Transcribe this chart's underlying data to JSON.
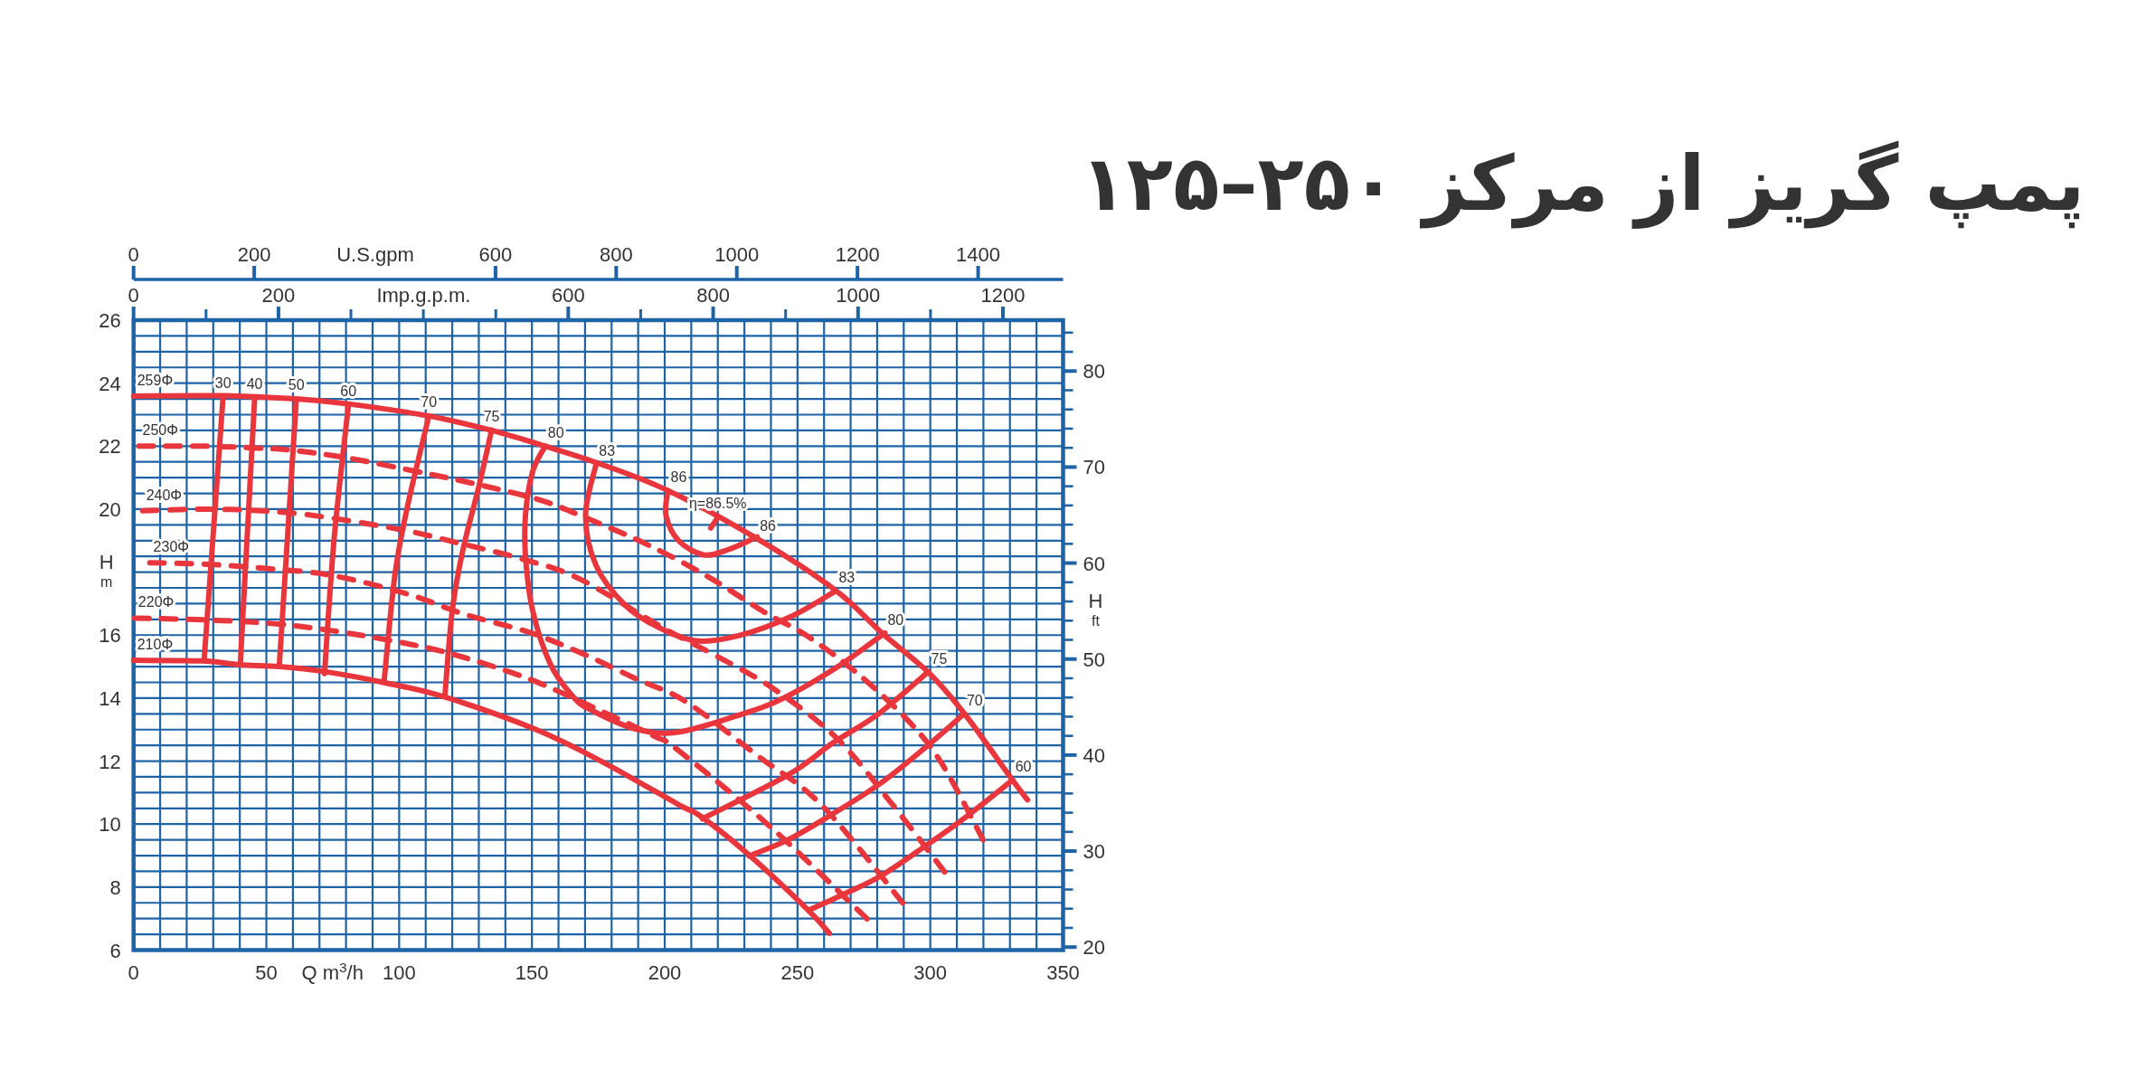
{
  "chart_data": [
    {
      "type": "line",
      "title": "پمپ گریز از مرکز ۲۵۰–۱۲۵",
      "xlabel": "Q m$^{3}$/h",
      "ylabel": "H$_{m}$",
      "y2label": "H$_{ft}$",
      "x2label": "Imp.g.p.m.",
      "xlim": [
        0,
        350
      ],
      "ylim": [
        6,
        26
      ],
      "y2lim": [
        19.69,
        85.3
      ],
      "x2lim": [
        0,
        1283
      ],
      "xticks": [
        0,
        {
          "value": 10,
          "label": null
        },
        {
          "value": 20,
          "label": null
        },
        {
          "value": 30,
          "label": null
        },
        {
          "value": 40,
          "label": null
        },
        50,
        {
          "value": 60,
          "label": null
        },
        {
          "value": 70,
          "label": null
        },
        {
          "value": 80,
          "label": null
        },
        {
          "value": 90,
          "label": null
        },
        100,
        {
          "value": 110,
          "label": null
        },
        {
          "value": 120,
          "label": null
        },
        {
          "value": 130,
          "label": null
        },
        {
          "value": 140,
          "label": null
        },
        150,
        {
          "value": 160,
          "label": null
        },
        {
          "value": 170,
          "label": null
        },
        {
          "value": 180,
          "label": null
        },
        {
          "value": 190,
          "label": null
        },
        200,
        {
          "value": 210,
          "label": null
        },
        {
          "value": 220,
          "label": null
        },
        {
          "value": 230,
          "label": null
        },
        {
          "value": 240,
          "label": null
        },
        250,
        {
          "value": 260,
          "label": null
        },
        {
          "value": 270,
          "label": null
        },
        {
          "value": 280,
          "label": null
        },
        {
          "value": 290,
          "label": null
        },
        300,
        {
          "value": 310,
          "label": null
        },
        {
          "value": 320,
          "label": null
        },
        {
          "value": 330,
          "label": null
        },
        {
          "value": 340,
          "label": null
        },
        350
      ],
      "yticks": [
        6,
        {
          "value": 6.5,
          "label": null
        },
        {
          "value": 7,
          "label": null
        },
        {
          "value": 7.5,
          "label": null
        },
        8,
        {
          "value": 8.5,
          "label": null
        },
        {
          "value": 9,
          "label": null
        },
        {
          "value": 9.5,
          "label": null
        },
        10,
        {
          "value": 10.5,
          "label": null
        },
        {
          "value": 11,
          "label": null
        },
        {
          "value": 11.5,
          "label": null
        },
        12,
        {
          "value": 12.5,
          "label": null
        },
        {
          "value": 13,
          "label": null
        },
        {
          "value": 13.5,
          "label": null
        },
        14,
        {
          "value": 14.5,
          "label": null
        },
        {
          "value": 15,
          "label": null
        },
        {
          "value": 15.5,
          "label": null
        },
        16,
        {
          "value": 16.5,
          "label": null
        },
        {
          "value": 17,
          "label": null
        },
        {
          "value": 17.5,
          "label": null
        },
        {
          "value": 18,
          "label": null
        },
        {
          "value": 18.5,
          "label": null
        },
        {
          "value": 19,
          "label": null
        },
        {
          "value": 19.5,
          "label": null
        },
        20,
        {
          "value": 20.5,
          "label": null
        },
        {
          "value": 21,
          "label": null
        },
        {
          "value": 21.5,
          "label": null
        },
        22,
        {
          "value": 22.5,
          "label": null
        },
        {
          "value": 23,
          "label": null
        },
        {
          "value": 23.5,
          "label": null
        },
        24,
        {
          "value": 24.5,
          "label": null
        },
        {
          "value": 25,
          "label": null
        },
        {
          "value": 25.5,
          "label": null
        },
        26
      ],
      "y2ticks": [
        20,
        {
          "value": 22,
          "label": null
        },
        {
          "value": 24,
          "label": null
        },
        {
          "value": 26,
          "label": null
        },
        {
          "value": 28,
          "label": null
        },
        30,
        {
          "value": 32,
          "label": null
        },
        {
          "value": 34,
          "label": null
        },
        {
          "value": 36,
          "label": null
        },
        {
          "value": 38,
          "label": null
        },
        40,
        {
          "value": 42,
          "label": null
        },
        {
          "value": 44,
          "label": null
        },
        {
          "value": 46,
          "label": null
        },
        {
          "value": 48,
          "label": null
        },
        50,
        {
          "value": 52,
          "label": null
        },
        {
          "value": 54,
          "label": null
        },
        {
          "value": 56,
          "label": null
        },
        {
          "value": 58,
          "label": null
        },
        60,
        {
          "value": 62,
          "label": null
        },
        {
          "value": 64,
          "label": null
        },
        {
          "value": 66,
          "label": null
        },
        {
          "value": 68,
          "label": null
        },
        70,
        {
          "value": 72,
          "label": null
        },
        {
          "value": 74,
          "label": null
        },
        {
          "value": 76,
          "label": null
        },
        {
          "value": 78,
          "label": null
        },
        80,
        {
          "value": 82,
          "label": null
        },
        {
          "value": 84,
          "label": null
        }
      ],
      "x2ticks": [
        0,
        {
          "value": 100,
          "label": null
        },
        200,
        {
          "value": 300,
          "label": null
        },
        {
          "value": 400,
          "label": null
        },
        {
          "value": 500,
          "label": null
        },
        600,
        {
          "value": 700,
          "label": null
        },
        800,
        {
          "value": 900,
          "label": null
        },
        1000,
        {
          "value": 1100,
          "label": null
        },
        1200
      ],
      "grid": true,
      "annotations": [
        {
          "text": "80",
          "x": 155,
          "y": 22.0
        },
        {
          "text": "83",
          "x": 174.2,
          "y": 21.44
        },
        {
          "text": "86",
          "x": 201.2,
          "y": 20.59
        },
        {
          "text": "86",
          "x": 234.8,
          "y": 19.06
        },
        {
          "text": "83",
          "x": 264.5,
          "y": 17.41
        },
        {
          "text": "80",
          "x": 282.9,
          "y": 16.07
        },
        {
          "text": "75",
          "x": 299.3,
          "y": 14.84
        },
        {
          "text": "70",
          "x": 312.7,
          "y": 13.5
        },
        {
          "text": "60",
          "x": 331,
          "y": 11.4
        }
      ],
      "series": [
        {
          "name": "259Φ",
          "color": "#e8363c",
          "line_style": "solid",
          "x": [
            0,
            34.4,
            61.3,
            80.9,
            111,
            134.8,
            155,
            175.2,
            201.2,
            234.8,
            264.5,
            282,
            299.5,
            313,
            330.5,
            336.6
          ],
          "values": [
            23.59,
            23.6,
            23.5,
            23.34,
            22.96,
            22.5,
            22.0,
            21.45,
            20.59,
            19.06,
            17.41,
            16.05,
            14.8,
            13.49,
            11.45,
            10.77
          ]
        },
        {
          "name": "250Φ",
          "color": "#e8363c",
          "line_style": "dashed",
          "x": [
            2,
            27,
            46.5,
            58.6,
            80.2,
            109.8,
            128.7,
            153,
            171.5,
            193.1,
            216,
            237.5,
            253.7,
            273.2,
            292.6,
            304.8,
            319.9
          ],
          "values": [
            22.0,
            22.0,
            21.94,
            21.88,
            21.63,
            21.14,
            20.8,
            20.29,
            19.68,
            18.89,
            17.87,
            16.73,
            15.97,
            14.74,
            13.2,
            11.86,
            9.5
          ]
        },
        {
          "name": "240Φ",
          "color": "#e8363c",
          "line_style": "dashed",
          "x": [
            3.4,
            27,
            47.9,
            69.4,
            101.8,
            122,
            146.2,
            167.8,
            198.5,
            218.7,
            240.2,
            264.5,
            285,
            305.4
          ],
          "values": [
            19.95,
            20.0,
            19.95,
            19.78,
            19.33,
            18.93,
            18.42,
            17.79,
            16.27,
            15.37,
            14.34,
            12.75,
            10.7,
            8.48
          ]
        },
        {
          "name": "230Φ",
          "color": "#e8363c",
          "line_style": "dashed",
          "x": [
            6.1,
            27.7,
            47.9,
            73.5,
            101.8,
            124.7,
            148.9,
            169.1,
            189.3,
            207.9,
            234.8,
            259.1,
            289.6
          ],
          "values": [
            18.3,
            18.25,
            18.13,
            17.91,
            17.34,
            16.66,
            16.09,
            15.41,
            14.61,
            13.89,
            12.18,
            10.6,
            7.5
          ]
        },
        {
          "name": "220Φ",
          "color": "#e8363c",
          "line_style": "dashed",
          "x": [
            0.4,
            27.7,
            51.9,
            74.8,
            101.8,
            122,
            148.9,
            173.2,
            196.1,
            205.1,
            240,
            276.2
          ],
          "values": [
            16.54,
            16.48,
            16.37,
            16.14,
            15.75,
            15.35,
            14.61,
            13.7,
            12.79,
            12.34,
            9.9,
            6.99
          ]
        },
        {
          "name": "210Φ",
          "color": "#e8363c",
          "line_style": "solid",
          "x": [
            0,
            26,
            40,
            55,
            72,
            94,
            117,
            151,
            176,
            205,
            214,
            232,
            254,
            262
          ],
          "values": [
            15.2,
            15.18,
            15.06,
            15.0,
            14.84,
            14.5,
            14.04,
            13.02,
            12.0,
            10.63,
            10.22,
            9.0,
            7.27,
            6.53
          ]
        },
        {
          "name": "30",
          "color": "#e8363c",
          "line_style": "solid",
          "x": [
            33.7,
            26.6
          ],
          "values": [
            23.56,
            15.24
          ]
        },
        {
          "name": "40",
          "color": "#e8363c",
          "line_style": "solid",
          "x": [
            45.6,
            40.2
          ],
          "values": [
            23.53,
            15.12
          ]
        },
        {
          "name": "50",
          "color": "#e8363c",
          "line_style": "solid",
          "x": [
            61.3,
            54.9
          ],
          "values": [
            23.5,
            15.07
          ]
        },
        {
          "name": "60",
          "color": "#e8363c",
          "line_style": "solid",
          "x": [
            80.9,
            75.5,
            71.9
          ],
          "values": [
            23.3,
            19.04,
            14.78
          ]
        },
        {
          "name": "70",
          "color": "#e8363c",
          "line_style": "solid",
          "x": [
            111.2,
            103.1,
            98.4,
            94.3
          ],
          "values": [
            22.96,
            20.07,
            17.91,
            14.5
          ]
        },
        {
          "name": "75",
          "color": "#e8363c",
          "line_style": "solid",
          "x": [
            134.8,
            130.1,
            124.0,
            120.0,
            117.2
          ],
          "values": [
            22.51,
            20.75,
            18.7,
            16.77,
            14.04
          ]
        },
        {
          "color": "#e8363c",
          "line_style": "solid",
          "x": [
            155,
            150.3,
            147.6,
            147.6,
            150.3,
            157,
            166,
            173,
            189,
            205,
            229.4,
            245.2,
            265.9,
            282.9
          ],
          "values": [
            22.0,
            21.2,
            19.84,
            18.48,
            16.77,
            15.07,
            14.0,
            13.59,
            13.02,
            12.92,
            13.5,
            14.02,
            15.04,
            16.07
          ]
        },
        {
          "color": "#e8363c",
          "line_style": "solid",
          "x": [
            174.2,
            170.2,
            174.2,
            185,
            197.1,
            211.9,
            228.1,
            248.3,
            264.5
          ],
          "values": [
            21.44,
            19.8,
            18.2,
            16.96,
            16.27,
            15.82,
            15.99,
            16.62,
            17.41
          ]
        },
        {
          "color": "#e8363c",
          "line_style": "solid",
          "x": [
            201.2,
            200.5,
            205.2,
            214.6,
            224.1,
            234.8
          ],
          "values": [
            20.59,
            19.8,
            19.0,
            18.55,
            18.72,
            19.12
          ]
        },
        {
          "name": "η=86.5%",
          "color": "#e8363c",
          "line_style": "solid",
          "x": [
            220,
            217.3
          ],
          "values": [
            19.74,
            19.4
          ]
        },
        {
          "color": "#e8363c",
          "line_style": "solid",
          "x": [
            214.2,
            246.4,
            263.4,
            280.5,
            299.3
          ],
          "values": [
            10.17,
            11.56,
            12.58,
            13.5,
            14.84
          ]
        },
        {
          "color": "#e8363c",
          "line_style": "solid",
          "x": [
            231.8,
            246.4,
            262.2,
            280.5,
            298.1,
            312.7
          ],
          "values": [
            8.99,
            9.5,
            10.27,
            11.25,
            12.43,
            13.5
          ]
        },
        {
          "color": "#e8363c",
          "line_style": "solid",
          "x": [
            254.3,
            268.3,
            281.7,
            298.1,
            313.3,
            331
          ],
          "values": [
            7.27,
            7.81,
            8.37,
            9.3,
            10.22,
            11.4
          ]
        }
      ]
    },
    {
      "type": "other",
      "xlabel": "U.S.gpm",
      "values": [
        0,
        200,
        600,
        800,
        1000,
        1200,
        1400
      ],
      "value_labels": [
        "0",
        "200",
        "600",
        "800",
        "1000",
        "1200",
        "1400"
      ]
    }
  ]
}
